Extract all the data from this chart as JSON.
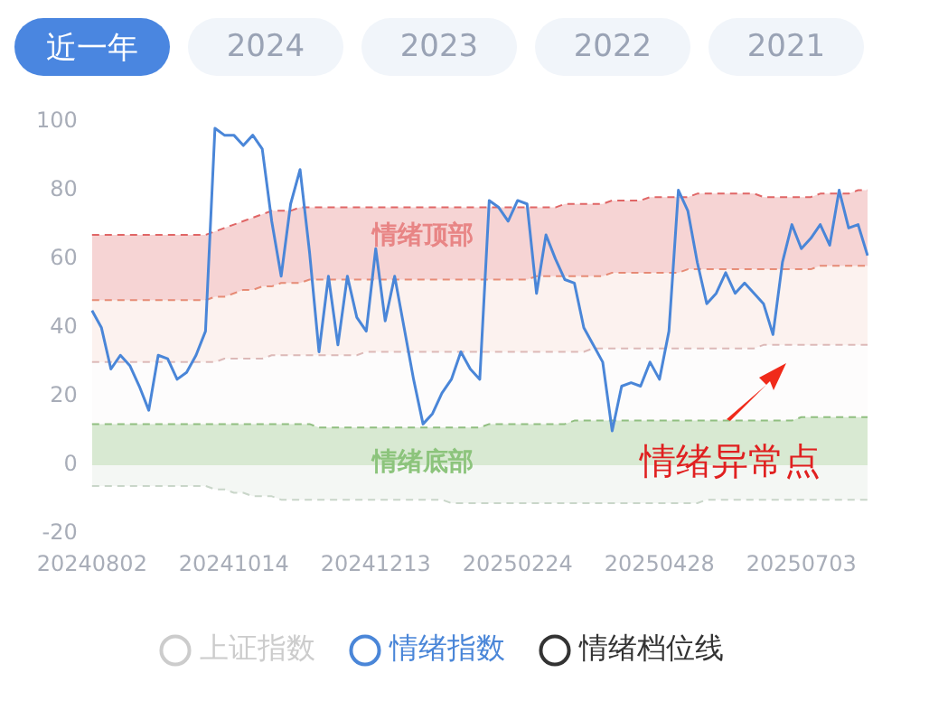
{
  "chart_data": {
    "type": "line",
    "categories": [
      "20240802",
      null,
      null,
      null,
      null,
      null,
      null,
      null,
      null,
      null,
      null,
      null,
      null,
      null,
      null,
      "20241014",
      null,
      null,
      null,
      null,
      null,
      null,
      null,
      null,
      null,
      null,
      null,
      null,
      null,
      null,
      "20241213",
      null,
      null,
      null,
      null,
      null,
      null,
      null,
      null,
      null,
      null,
      null,
      null,
      null,
      null,
      "20250224",
      null,
      null,
      null,
      null,
      null,
      null,
      null,
      null,
      null,
      null,
      null,
      null,
      null,
      null,
      "20250428",
      null,
      null,
      null,
      null,
      null,
      null,
      null,
      null,
      null,
      null,
      null,
      null,
      null,
      null,
      "20250703",
      null,
      null,
      null,
      null,
      null,
      null,
      null
    ],
    "series": [
      {
        "name": "上证指数",
        "color": "#cccccc",
        "values": [
          null,
          null,
          null,
          null,
          null,
          null,
          null,
          null,
          null,
          null,
          null,
          null,
          null,
          null,
          null,
          null,
          null,
          null,
          null,
          null,
          null,
          null,
          null,
          null,
          null,
          null,
          null,
          null,
          null,
          null,
          null,
          null,
          null,
          null,
          null,
          null,
          null,
          null,
          null,
          null,
          null,
          null,
          null,
          null,
          null,
          null,
          null,
          null,
          null,
          null,
          null,
          null,
          null,
          null,
          null,
          null,
          null,
          null,
          null,
          null,
          null,
          null,
          null,
          null,
          null,
          null,
          null,
          null,
          null,
          null,
          null,
          null,
          null,
          null,
          null,
          null,
          null,
          null,
          null,
          null,
          null,
          null,
          null
        ]
      },
      {
        "name": "情绪指数",
        "color": "#4a86d8",
        "values": [
          45,
          40,
          28,
          32,
          29,
          23,
          16,
          32,
          31,
          25,
          27,
          32,
          39,
          98,
          96,
          96,
          93,
          96,
          92,
          71,
          55,
          76,
          86,
          62,
          33,
          55,
          35,
          55,
          43,
          39,
          63,
          42,
          55,
          40,
          25,
          12,
          15,
          21,
          25,
          33,
          28,
          25,
          77,
          75,
          71,
          77,
          76,
          50,
          67,
          60,
          54,
          53,
          40,
          35,
          30,
          10,
          23,
          24,
          23,
          30,
          25,
          39,
          80,
          74,
          59,
          47,
          50,
          56,
          50,
          53,
          50,
          47,
          38,
          59,
          70,
          63,
          66,
          70,
          64,
          80,
          69,
          70,
          61
        ]
      },
      {
        "name": "情绪档位线",
        "color": "#333333",
        "values": [
          null,
          null,
          null,
          null,
          null,
          null,
          null,
          null,
          null,
          null,
          null,
          null,
          null,
          null,
          null,
          null,
          null,
          null,
          null,
          null,
          null,
          null,
          null,
          null,
          null,
          null,
          null,
          null,
          null,
          null,
          null,
          null,
          null,
          null,
          null,
          null,
          null,
          null,
          null,
          null,
          null,
          null,
          null,
          null,
          null,
          null,
          null,
          null,
          null,
          null,
          null,
          null,
          null,
          null,
          null,
          null,
          null,
          null,
          null,
          null,
          null,
          null,
          null,
          null,
          null,
          null,
          null,
          null,
          null,
          null,
          null,
          null,
          null,
          null,
          null,
          null,
          null,
          null,
          null,
          null,
          null,
          null,
          null
        ]
      },
      {
        "type": "area",
        "color": "#e06666",
        "line_style": "dashed",
        "values": [
          67,
          67,
          67,
          67,
          67,
          67,
          67,
          67,
          67,
          67,
          67,
          67,
          67,
          68,
          69,
          70,
          71,
          72,
          73,
          74,
          74,
          74,
          75,
          75,
          75,
          75,
          75,
          75,
          75,
          75,
          75,
          75,
          75,
          75,
          75,
          75,
          75,
          75,
          75,
          75,
          75,
          75,
          75,
          75,
          75,
          75,
          75,
          75,
          75,
          75,
          76,
          76,
          76,
          76,
          76,
          77,
          77,
          77,
          77,
          78,
          78,
          78,
          78,
          78,
          79,
          79,
          79,
          79,
          79,
          79,
          79,
          78,
          78,
          78,
          78,
          78,
          78,
          79,
          79,
          79,
          79,
          80,
          80
        ]
      },
      {
        "type": "area",
        "color": "#e8937a",
        "line_style": "dashed",
        "values": [
          48,
          48,
          48,
          48,
          48,
          48,
          48,
          48,
          48,
          48,
          48,
          48,
          48,
          49,
          49,
          50,
          51,
          51,
          52,
          52,
          53,
          53,
          53,
          54,
          54,
          54,
          54,
          54,
          54,
          54,
          54,
          54,
          54,
          54,
          54,
          54,
          54,
          54,
          54,
          54,
          54,
          54,
          54,
          54,
          54,
          54,
          54,
          55,
          55,
          55,
          55,
          55,
          55,
          55,
          55,
          56,
          56,
          56,
          56,
          56,
          56,
          56,
          56,
          57,
          57,
          57,
          57,
          57,
          57,
          57,
          57,
          57,
          57,
          57,
          57,
          57,
          57,
          58,
          58,
          58,
          58,
          58,
          58
        ]
      },
      {
        "type": "area",
        "color": "#dcbcbc",
        "line_style": "dashed",
        "values": [
          30,
          30,
          30,
          30,
          30,
          30,
          30,
          30,
          30,
          30,
          30,
          30,
          30,
          30,
          31,
          31,
          31,
          31,
          31,
          32,
          32,
          32,
          32,
          32,
          32,
          32,
          32,
          32,
          32,
          33,
          33,
          33,
          33,
          33,
          33,
          33,
          33,
          33,
          33,
          33,
          33,
          33,
          33,
          33,
          33,
          33,
          33,
          33,
          33,
          33,
          33,
          33,
          33,
          34,
          34,
          34,
          34,
          34,
          34,
          34,
          34,
          34,
          34,
          34,
          34,
          34,
          34,
          34,
          34,
          34,
          34,
          35,
          35,
          35,
          35,
          35,
          35,
          35,
          35,
          35,
          35,
          35,
          35
        ]
      },
      {
        "type": "area",
        "color": "#8fbf7f",
        "line_style": "dashed",
        "values": [
          12,
          12,
          12,
          12,
          12,
          12,
          12,
          12,
          12,
          12,
          12,
          12,
          12,
          12,
          12,
          12,
          12,
          12,
          12,
          12,
          12,
          12,
          12,
          12,
          11,
          11,
          11,
          11,
          11,
          11,
          11,
          11,
          11,
          11,
          11,
          11,
          11,
          11,
          11,
          11,
          11,
          11,
          12,
          12,
          12,
          12,
          12,
          12,
          12,
          12,
          12,
          13,
          13,
          13,
          13,
          13,
          13,
          13,
          13,
          13,
          13,
          13,
          13,
          13,
          13,
          13,
          13,
          13,
          13,
          13,
          13,
          13,
          13,
          13,
          13,
          14,
          14,
          14,
          14,
          14,
          14,
          14,
          14
        ]
      },
      {
        "type": "area",
        "color": "#c9d6c9",
        "line_style": "dashed",
        "values": [
          -6,
          -6,
          -6,
          -6,
          -6,
          -6,
          -6,
          -6,
          -6,
          -6,
          -6,
          -6,
          -6,
          -7,
          -7,
          -8,
          -8,
          -9,
          -9,
          -9,
          -10,
          -10,
          -10,
          -10,
          -10,
          -10,
          -10,
          -10,
          -10,
          -10,
          -10,
          -10,
          -10,
          -10,
          -10,
          -10,
          -10,
          -10,
          -11,
          -11,
          -11,
          -11,
          -11,
          -11,
          -11,
          -11,
          -11,
          -11,
          -11,
          -11,
          -11,
          -11,
          -11,
          -11,
          -11,
          -11,
          -11,
          -11,
          -11,
          -11,
          -11,
          -11,
          -11,
          -11,
          -11,
          -10,
          -10,
          -10,
          -10,
          -10,
          -10,
          -10,
          -10,
          -10,
          -10,
          -10,
          -10,
          -10,
          -10,
          -10,
          -10,
          -10,
          -10
        ]
      }
    ],
    "ylim": [
      -20,
      100
    ],
    "yticks": [
      -20,
      0,
      20,
      40,
      60,
      80,
      100
    ],
    "grid": false,
    "legend": "bottom",
    "marker": "none",
    "line_style": "solid",
    "annotations": [
      "近一年",
      "2024",
      "2023",
      "2022",
      "2021",
      "情绪异常点",
      "情绪顶部",
      "情绪底部"
    ]
  }
}
